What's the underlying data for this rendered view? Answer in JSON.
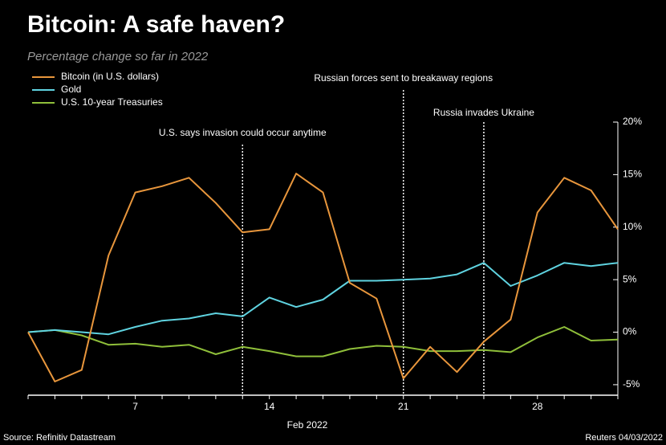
{
  "chart_data": {
    "type": "line",
    "title": "Bitcoin: A safe haven?",
    "subtitle": "Percentage change so far in 2022",
    "x_label": "Feb 2022",
    "source": "Source: Refinitiv Datastream",
    "credit": "Reuters 04/03/2022",
    "categories": [
      null,
      null,
      null,
      null,
      "7",
      null,
      null,
      null,
      null,
      "14",
      null,
      null,
      null,
      null,
      "21",
      null,
      null,
      null,
      null,
      "28",
      null,
      null,
      null
    ],
    "series": [
      {
        "name": "Bitcoin (in U.S. dollars)",
        "color": "#e8963c",
        "values": [
          0,
          -4.7,
          -3.6,
          7.3,
          13.3,
          13.9,
          14.7,
          12.3,
          9.5,
          9.8,
          15.1,
          13.3,
          4.7,
          3.2,
          -4.4,
          -1.4,
          -3.8,
          -0.9,
          1.2,
          11.4,
          14.7,
          13.5,
          9.8
        ]
      },
      {
        "name": "Gold",
        "color": "#5fd3e0",
        "values": [
          0,
          0.2,
          0,
          -0.2,
          0.5,
          1.1,
          1.3,
          1.8,
          1.5,
          3.3,
          2.4,
          3.1,
          4.9,
          4.9,
          5.0,
          5.1,
          5.5,
          6.6,
          4.4,
          5.4,
          6.6,
          6.3,
          6.6
        ]
      },
      {
        "name": "U.S. 10-year Treasuries",
        "color": "#8fbf3a",
        "values": [
          0,
          0.2,
          -0.3,
          -1.2,
          -1.1,
          -1.4,
          -1.2,
          -2.1,
          -1.4,
          -1.8,
          -2.3,
          -2.3,
          -1.6,
          -1.3,
          -1.4,
          -1.8,
          -1.8,
          -1.7,
          -1.9,
          -0.5,
          0.5,
          -0.8,
          -0.7
        ]
      }
    ],
    "annotations": [
      {
        "label": "U.S. says invasion could occur anytime",
        "index": 8
      },
      {
        "label": "Russian forces sent to breakaway regions",
        "index": 14
      },
      {
        "label": "Russia invades Ukraine",
        "index": 17
      }
    ],
    "ylim": [
      -6,
      20
    ],
    "yticks": [
      {
        "value": -5,
        "label": "-5%"
      },
      {
        "value": 0,
        "label": "0%"
      },
      {
        "value": 5,
        "label": "5%"
      },
      {
        "value": 10,
        "label": "10%"
      },
      {
        "value": 15,
        "label": "15%"
      },
      {
        "value": 20,
        "label": "20%"
      }
    ],
    "y_axis_side": "right",
    "grid": false
  }
}
